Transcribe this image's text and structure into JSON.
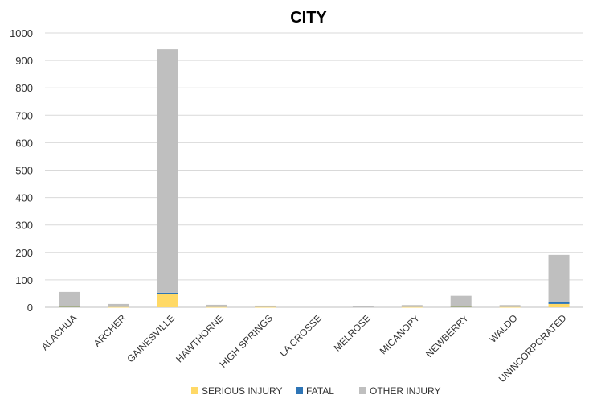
{
  "chart_data": {
    "type": "bar",
    "stacked": true,
    "title": "CITY",
    "xlabel": "",
    "ylabel": "",
    "ylim": [
      0,
      1000
    ],
    "yticks": [
      0,
      100,
      200,
      300,
      400,
      500,
      600,
      700,
      800,
      900,
      1000
    ],
    "grid": true,
    "legend_position": "bottom",
    "categories": [
      "ALACHUA",
      "ARCHER",
      "GAINESVILLE",
      "HAWTHORNE",
      "HIGH SPRINGS",
      "LA CROSSE",
      "MELROSE",
      "MICANOPY",
      "NEWBERRY",
      "WALDO",
      "UNINCORPORATED"
    ],
    "series": [
      {
        "name": "SERIOUS INJURY",
        "color": "#ffd966",
        "values": [
          3,
          1,
          48,
          1,
          1,
          0,
          0,
          1,
          3,
          1,
          12
        ]
      },
      {
        "name": "FATAL",
        "color": "#2e75b6",
        "values": [
          1,
          0,
          5,
          0,
          0,
          0,
          0,
          0,
          1,
          0,
          7
        ]
      },
      {
        "name": "OTHER INJURY",
        "color": "#bfbfbf",
        "values": [
          52,
          11,
          888,
          8,
          5,
          1,
          4,
          7,
          38,
          7,
          172
        ]
      }
    ]
  }
}
